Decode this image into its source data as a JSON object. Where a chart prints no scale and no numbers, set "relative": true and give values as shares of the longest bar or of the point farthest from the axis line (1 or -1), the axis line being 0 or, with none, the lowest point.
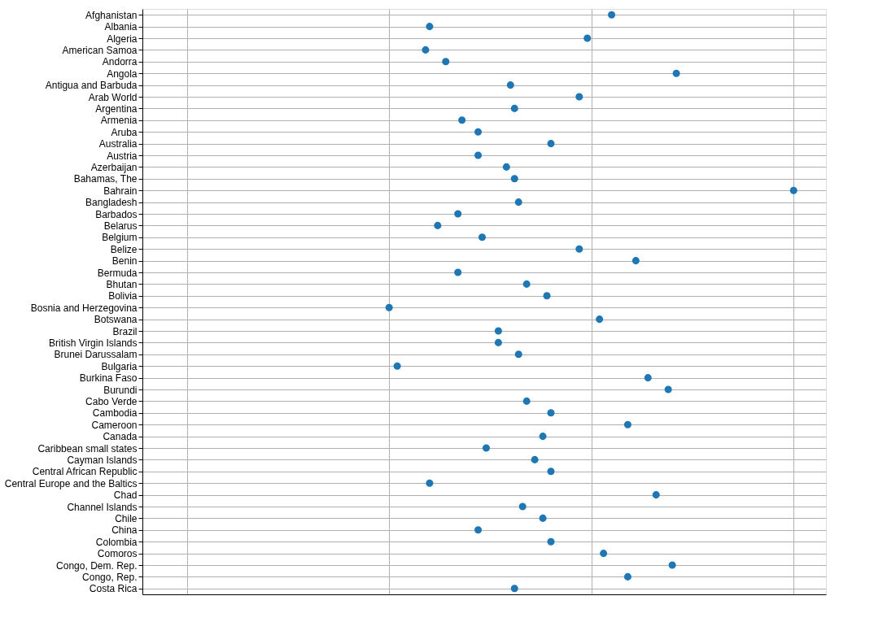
{
  "chart_data": {
    "type": "scatter",
    "relative": true,
    "grid": true,
    "marker": "circle",
    "categories": [
      "Afghanistan",
      "Albania",
      "Algeria",
      "American Samoa",
      "Andorra",
      "Angola",
      "Antigua and Barbuda",
      "Arab World",
      "Argentina",
      "Armenia",
      "Aruba",
      "Australia",
      "Austria",
      "Azerbaijan",
      "Bahamas, The",
      "Bahrain",
      "Bangladesh",
      "Barbados",
      "Belarus",
      "Belgium",
      "Belize",
      "Benin",
      "Bermuda",
      "Bhutan",
      "Bolivia",
      "Bosnia and Herzegovina",
      "Botswana",
      "Brazil",
      "British Virgin Islands",
      "Brunei Darussalam",
      "Bulgaria",
      "Burkina Faso",
      "Burundi",
      "Cabo Verde",
      "Cambodia",
      "Cameroon",
      "Canada",
      "Caribbean small states",
      "Cayman Islands",
      "Central African Republic",
      "Central Europe and the Baltics",
      "Chad",
      "Channel Islands",
      "Chile",
      "China",
      "Colombia",
      "Comoros",
      "Congo, Dem. Rep.",
      "Congo, Rep.",
      "Costa Rica"
    ],
    "orientation": "horizontal",
    "series": [
      {
        "color": "#1f77b4",
        "values": [
          0.55,
          0.1,
          0.49,
          0.09,
          0.14,
          0.71,
          0.3,
          0.47,
          0.31,
          0.18,
          0.22,
          0.4,
          0.22,
          0.29,
          0.31,
          1,
          0.32,
          0.17,
          0.12,
          0.23,
          0.47,
          0.61,
          0.17,
          0.34,
          0.39,
          0,
          0.52,
          0.27,
          0.27,
          0.32,
          0.02,
          0.64,
          0.69,
          0.34,
          0.4,
          0.59,
          0.38,
          0.24,
          0.36,
          0.4,
          0.1,
          0.66,
          0.33,
          0.38,
          0.22,
          0.4,
          0.53,
          0.7,
          0.59,
          0.31
        ]
      }
    ]
  }
}
